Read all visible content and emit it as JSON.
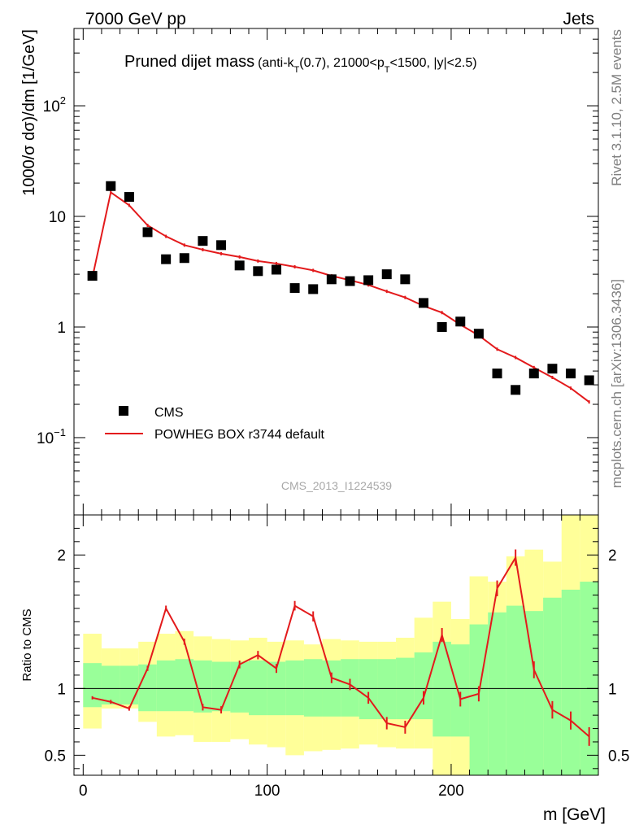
{
  "header": {
    "left": "7000 GeV pp",
    "right": "Jets"
  },
  "side_labels": {
    "rivet": "Rivet 3.1.10,  2.5M events",
    "mcplots": "mcplots.cern.ch [arXiv:1306.3436]"
  },
  "watermark": "CMS_2013_I1224539",
  "chart_data": [
    {
      "type": "scatter",
      "panel": "main",
      "title": "Pruned dijet mass",
      "subtitle_parts": {
        "a": "(anti-k",
        "a_sub": "T",
        "b": "(0.7), 21000<p",
        "b_sub": "T",
        "c": "<1500, |y|<2.5)"
      },
      "ylabel": "1000/σ dσ)/dm [1/GeV]",
      "yscale": "log",
      "ylim": [
        0.02,
        500
      ],
      "xlim": [
        -5,
        280
      ],
      "y_ticks": [
        {
          "value": 100,
          "base": "10",
          "exp": "2"
        },
        {
          "value": 10,
          "base": "10",
          "exp": ""
        },
        {
          "value": 1,
          "base": "1",
          "exp": ""
        },
        {
          "value": 0.1,
          "base": "10",
          "exp": "−1"
        }
      ],
      "legend": {
        "placement": "bottom-left",
        "cms": "CMS",
        "mc": "POWHEG BOX r3744 default"
      },
      "x": [
        5,
        15,
        25,
        35,
        45,
        55,
        65,
        75,
        85,
        95,
        105,
        115,
        125,
        135,
        145,
        155,
        165,
        175,
        185,
        195,
        205,
        215,
        225,
        235,
        245,
        255,
        265,
        275
      ],
      "series": [
        {
          "name": "CMS",
          "color": "#000000",
          "values": [
            2.9,
            18.8,
            15.0,
            7.2,
            4.1,
            4.2,
            6.0,
            5.5,
            3.6,
            3.2,
            3.3,
            2.25,
            2.2,
            2.7,
            2.6,
            2.65,
            3.0,
            2.7,
            1.65,
            1.0,
            1.12,
            0.87,
            0.38,
            0.27,
            0.38,
            0.42,
            0.38,
            0.33
          ]
        },
        {
          "name": "POWHEG BOX r3744 default",
          "color": "#e31a1c",
          "values": [
            2.8,
            16.5,
            12.6,
            8.3,
            6.6,
            5.5,
            5.0,
            4.6,
            4.3,
            3.95,
            3.75,
            3.5,
            3.25,
            2.9,
            2.65,
            2.4,
            2.1,
            1.85,
            1.55,
            1.35,
            1.05,
            0.84,
            0.63,
            0.53,
            0.43,
            0.35,
            0.28,
            0.21
          ]
        }
      ]
    },
    {
      "type": "line",
      "panel": "ratio",
      "ylabel": "Ratio to CMS",
      "xlabel": "m [GeV]",
      "ylim": [
        0.35,
        2.3
      ],
      "xlim": [
        -5,
        280
      ],
      "y_ticks": [
        {
          "value": 2,
          "label": "2"
        },
        {
          "value": 1,
          "label": "1"
        },
        {
          "value": 0.5,
          "label": "0.5"
        }
      ],
      "x_ticks": [
        {
          "value": 0,
          "label": "0"
        },
        {
          "value": 100,
          "label": "100"
        },
        {
          "value": 200,
          "label": "200"
        }
      ],
      "reference_line": 1,
      "band_colors": {
        "inner": "#99ff99",
        "outer": "#ffff99"
      },
      "bins": [
        0,
        10,
        20,
        30,
        40,
        50,
        60,
        70,
        80,
        90,
        100,
        110,
        120,
        130,
        140,
        150,
        160,
        170,
        180,
        190,
        200,
        210,
        220,
        230,
        240,
        250,
        260,
        270,
        280
      ],
      "bands": {
        "outer_low": [
          0.7,
          0.85,
          0.85,
          0.75,
          0.64,
          0.65,
          0.6,
          0.6,
          0.62,
          0.58,
          0.56,
          0.5,
          0.53,
          0.54,
          0.55,
          0.58,
          0.56,
          0.55,
          0.55,
          0.3,
          0.3,
          0.3,
          0.3,
          0.3,
          0.3,
          0.33,
          0.3,
          0.3
        ],
        "outer_high": [
          1.41,
          1.3,
          1.3,
          1.35,
          1.41,
          1.43,
          1.39,
          1.37,
          1.36,
          1.38,
          1.35,
          1.36,
          1.33,
          1.37,
          1.36,
          1.35,
          1.35,
          1.38,
          1.53,
          1.65,
          1.52,
          1.84,
          1.8,
          1.99,
          2.04,
          1.95,
          2.3,
          2.3
        ],
        "inner_low": [
          0.86,
          0.88,
          0.88,
          0.83,
          0.83,
          0.83,
          0.82,
          0.83,
          0.82,
          0.8,
          0.8,
          0.8,
          0.79,
          0.79,
          0.79,
          0.77,
          0.77,
          0.77,
          0.77,
          0.64,
          0.64,
          0.3,
          0.3,
          0.3,
          0.33,
          0.3,
          0.3,
          0.3
        ],
        "inner_high": [
          1.19,
          1.17,
          1.17,
          1.18,
          1.21,
          1.22,
          1.21,
          1.2,
          1.2,
          1.21,
          1.2,
          1.21,
          1.22,
          1.21,
          1.22,
          1.22,
          1.22,
          1.23,
          1.27,
          1.35,
          1.33,
          1.48,
          1.57,
          1.62,
          1.58,
          1.68,
          1.74,
          1.8
        ]
      },
      "x": [
        5,
        15,
        25,
        35,
        45,
        55,
        65,
        75,
        85,
        95,
        105,
        115,
        125,
        135,
        145,
        155,
        165,
        175,
        185,
        195,
        205,
        215,
        225,
        235,
        245,
        255,
        265,
        275
      ],
      "series": [
        {
          "name": "POWHEG BOX r3744 default",
          "color": "#e31a1c",
          "values": [
            0.93,
            0.9,
            0.85,
            1.15,
            1.6,
            1.35,
            0.86,
            0.84,
            1.18,
            1.25,
            1.15,
            1.62,
            1.54,
            1.08,
            1.03,
            0.93,
            0.74,
            0.71,
            0.93,
            1.4,
            0.92,
            0.96,
            1.75,
            1.98,
            1.14,
            0.84,
            0.76,
            0.64
          ]
        }
      ]
    }
  ]
}
